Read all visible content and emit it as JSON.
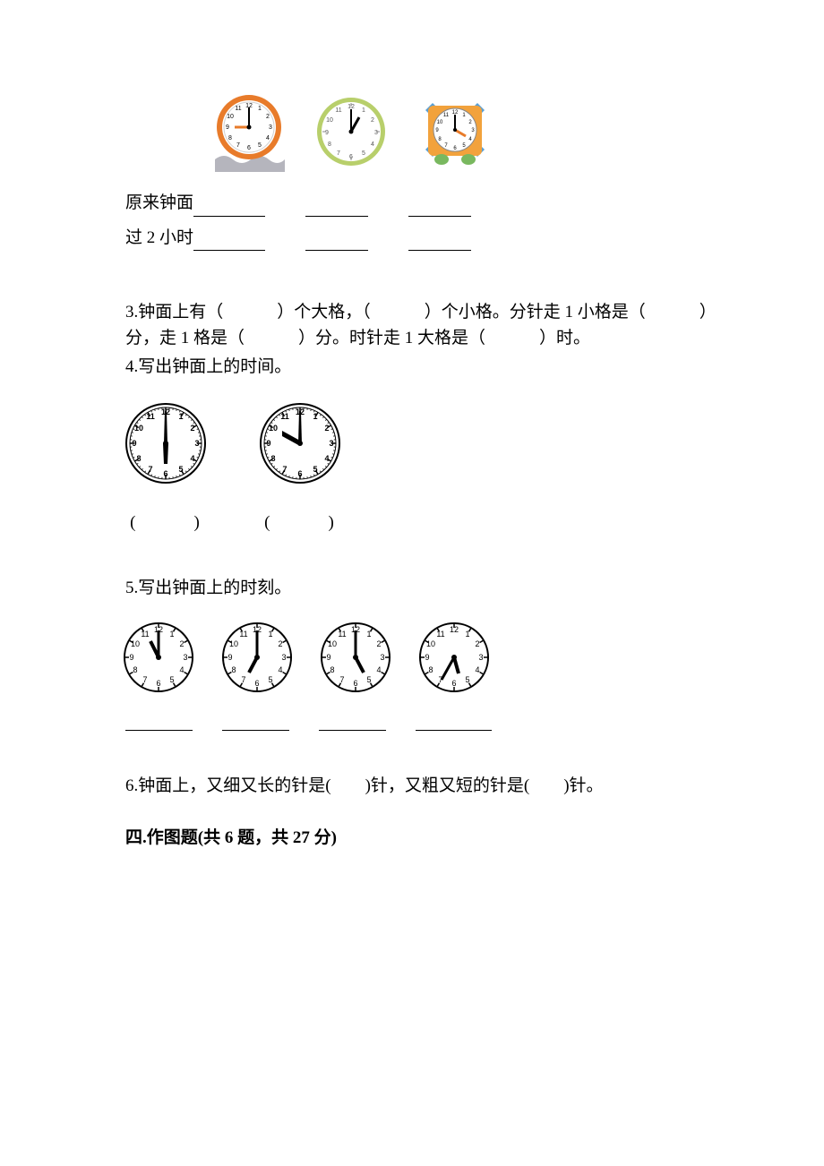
{
  "top_clocks": [
    {
      "hour_angle": 270,
      "minute_angle": 0,
      "rim_color": "#e87b2a",
      "face_color": "#ffffff",
      "base_color": "#b5b5bd",
      "base_shape": "wavy",
      "hand_color": "#000000",
      "hand_color_hour": "#e87b2a",
      "tick_color": "#000000",
      "number_color": "#000000",
      "size": 78
    },
    {
      "hour_angle": 30,
      "minute_angle": 0,
      "rim_color": "#b8cf6b",
      "face_color": "#ffffff",
      "hand_color": "#000000",
      "tick_color": "#555555",
      "number_color": "#555555",
      "size": 80
    },
    {
      "hour_angle": 120,
      "minute_angle": 0,
      "rim_color": "#ffffff",
      "case_color": "#f2a23c",
      "corner_color": "#5a9fd4",
      "feet_color": "#79b85f",
      "hand_color_hour": "#e87b2a",
      "hand_color_minute": "#000000",
      "tick_color": "#000000",
      "number_color": "#000000",
      "size": 82
    }
  ],
  "labels": {
    "original_face": "原来钟面",
    "after_2_hours": "过 2 小时"
  },
  "q3": {
    "prefix": "3.钟面上有（",
    "mid1": "）个大格，（",
    "mid2": "）个小格。分针走 1 小格是（",
    "mid3": "）",
    "line2_start": "分，走 1 格是（",
    "line2_mid": "）分。时针走 1 大格是（",
    "line2_end": "）时。"
  },
  "q4": {
    "title": "4.写出钟面上的时间。",
    "clocks": [
      {
        "hour_angle": 180,
        "minute_angle": 0,
        "size": 95,
        "style": "dotted"
      },
      {
        "hour_angle": 300,
        "minute_angle": 0,
        "size": 95,
        "style": "dotted"
      }
    ]
  },
  "q5": {
    "title": "5.写出钟面上的时刻。",
    "clocks": [
      {
        "hour_angle": 330,
        "minute_angle": 0,
        "size": 82,
        "style": "plain"
      },
      {
        "hour_angle": 210,
        "minute_angle": 0,
        "size": 82,
        "style": "plain"
      },
      {
        "hour_angle": 150,
        "minute_angle": 0,
        "size": 82,
        "style": "plain"
      },
      {
        "hour_angle": 165,
        "minute_angle": 210,
        "size": 82,
        "style": "plain"
      }
    ]
  },
  "q6": "6.钟面上，又细又长的针是(　　)针，又粗又短的针是(　　)针。",
  "section4": "四.作图题(共 6 题，共 27 分)",
  "colors": {
    "text": "#000000",
    "bg": "#ffffff"
  }
}
